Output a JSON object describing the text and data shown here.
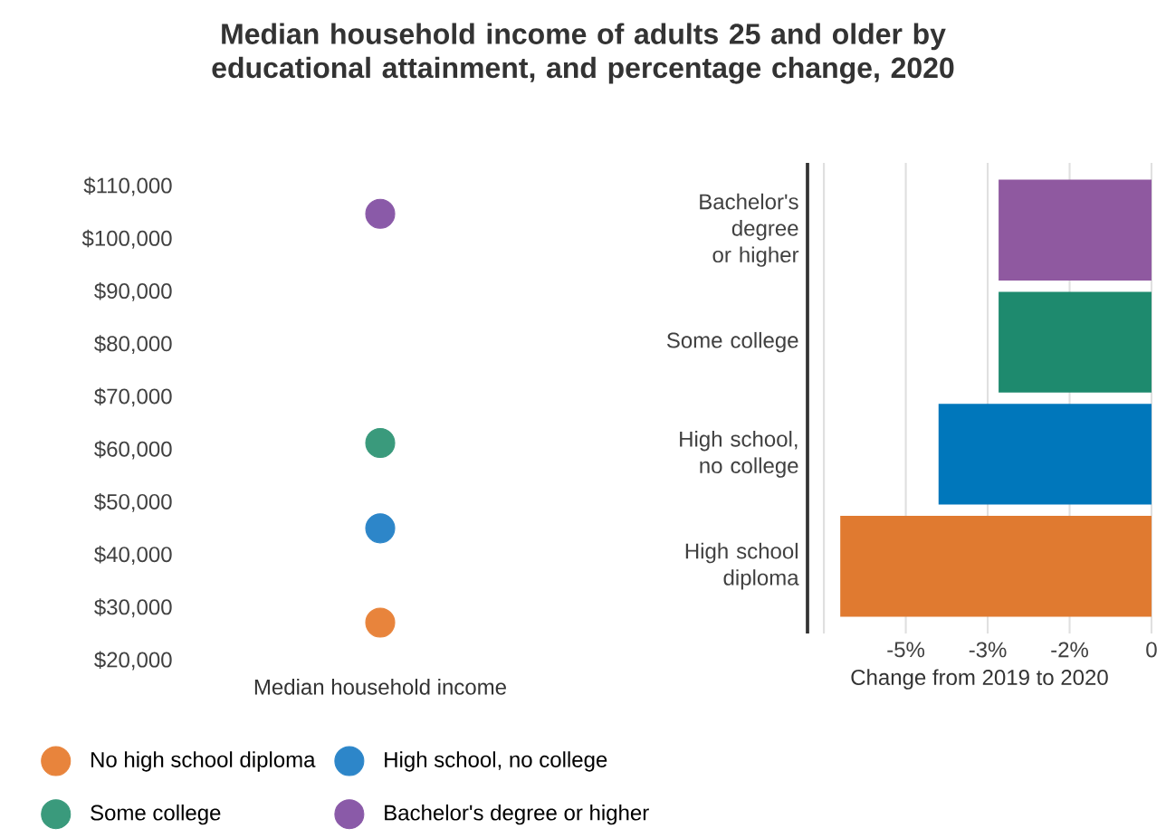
{
  "chart_data": [
    {
      "type": "scatter",
      "title": "Median household income of adults 25 and older by educational attainment, and percentage change, 2020",
      "categories": [
        "Median household income"
      ],
      "ylim": [
        20000,
        110000
      ],
      "yticks": [
        {
          "value": 20000,
          "label": "$20,000"
        },
        {
          "value": 30000,
          "label": "$30,000"
        },
        {
          "value": 40000,
          "label": "$40,000"
        },
        {
          "value": 50000,
          "label": "$50,000"
        },
        {
          "value": 60000,
          "label": "$60,000"
        },
        {
          "value": 70000,
          "label": "$70,000"
        },
        {
          "value": 80000,
          "label": "$80,000"
        },
        {
          "value": 90000,
          "label": "$90,000"
        },
        {
          "value": 100000,
          "label": "$100,000"
        },
        {
          "value": 110000,
          "label": "$110,000"
        }
      ],
      "legend": "bottom",
      "series": [
        {
          "name": "No high school diploma",
          "color": "#e8843c",
          "values": [
            27200
          ]
        },
        {
          "name": "High school, no college",
          "color": "#2d86c9",
          "values": [
            45100
          ]
        },
        {
          "name": "Some college",
          "color": "#3a9a7c",
          "values": [
            61300
          ]
        },
        {
          "name": "Bachelor's degree or higher",
          "color": "#8a5aa8",
          "values": [
            104800
          ]
        }
      ]
    },
    {
      "type": "bar",
      "orientation": "horizontal",
      "xlabel": "Change from 2019 to 2020",
      "categories": [
        "Bachelor's degree or higher",
        "Some college",
        "High school, no college",
        "High school diploma"
      ],
      "values": [
        -2.8,
        -2.8,
        -3.9,
        -5.7
      ],
      "colors": [
        "#8f59a0",
        "#1e8a6e",
        "#0077bb",
        "#e07a30"
      ],
      "xlim": [
        -6.3,
        0
      ],
      "xticks": [
        {
          "value": -6,
          "label": null
        },
        {
          "value": -4.5,
          "label": "-5%"
        },
        {
          "value": -3,
          "label": "-3%"
        },
        {
          "value": -1.5,
          "label": "-2%"
        },
        {
          "value": 0,
          "label": "0"
        }
      ],
      "grid": "x"
    }
  ]
}
